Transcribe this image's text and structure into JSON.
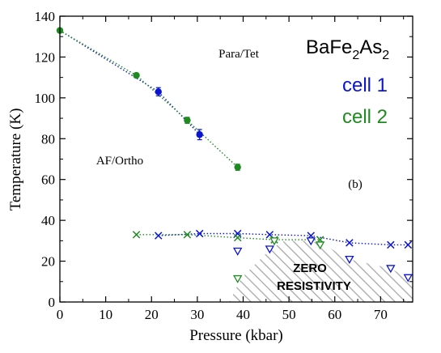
{
  "chart_data": {
    "type": "scatter",
    "title": "",
    "xlabel": "Pressure (kbar)",
    "ylabel": "Temperature (K)",
    "xlim": [
      0,
      77
    ],
    "ylim": [
      0,
      140
    ],
    "xticks": [
      0,
      10,
      20,
      30,
      40,
      50,
      60,
      70
    ],
    "yticks": [
      0,
      20,
      40,
      60,
      80,
      100,
      120,
      140
    ],
    "grid": false,
    "legend_position": "top-right",
    "compound": {
      "base": "BaFe",
      "sub1": "2",
      "mid": "As",
      "sub2": "2"
    },
    "panel_label": "(b)",
    "annotations": [
      {
        "text": "Para/Tet",
        "x": 35,
        "y": 122
      },
      {
        "text": "AF/Ortho",
        "x": 13,
        "y": 68
      }
    ],
    "zero_resistivity": {
      "label_line1": "ZERO",
      "label_line2": "RESISTIVITY",
      "boundary": [
        [
          37,
          0
        ],
        [
          39.5,
          11.5
        ],
        [
          46,
          26
        ],
        [
          49,
          30
        ],
        [
          54,
          30
        ],
        [
          57,
          29
        ],
        [
          63,
          21
        ],
        [
          72,
          16.5
        ],
        [
          76,
          12
        ],
        [
          77,
          11.5
        ],
        [
          77,
          0
        ]
      ]
    },
    "series": [
      {
        "name": "cell 1",
        "color": "#0a14d2",
        "marker": "circle",
        "points": [
          [
            21.5,
            103,
            2
          ],
          [
            30.5,
            82,
            2.5
          ]
        ]
      },
      {
        "name": "cell 2",
        "color": "#1f8a1f",
        "marker": "circle",
        "points": [
          [
            0,
            133,
            0
          ],
          [
            16.7,
            111,
            0
          ],
          [
            27.8,
            89,
            1.5
          ],
          [
            38.8,
            66,
            1.5
          ]
        ]
      },
      {
        "name": "cell 1",
        "color": "#0a14d2",
        "marker": "x",
        "points": [
          [
            21.5,
            32.5
          ],
          [
            30.5,
            33.5
          ],
          [
            38.8,
            33.5
          ],
          [
            45.8,
            33
          ],
          [
            54.8,
            32.5
          ],
          [
            63.2,
            29
          ],
          [
            72.2,
            28
          ],
          [
            76,
            28
          ]
        ]
      },
      {
        "name": "cell 2",
        "color": "#1f8a1f",
        "marker": "x",
        "points": [
          [
            16.7,
            33
          ],
          [
            27.8,
            33
          ],
          [
            38.8,
            31.5
          ],
          [
            46.8,
            30.5
          ],
          [
            56.8,
            30.5
          ]
        ]
      },
      {
        "name": "cell 1",
        "color": "#0a14d2",
        "marker": "triangle-down",
        "points": [
          [
            38.8,
            25
          ],
          [
            45.8,
            26
          ],
          [
            54.8,
            30
          ],
          [
            63.2,
            21
          ],
          [
            72.2,
            16.5
          ],
          [
            76,
            12
          ]
        ]
      },
      {
        "name": "cell 2",
        "color": "#1f8a1f",
        "marker": "triangle-down",
        "points": [
          [
            38.8,
            11.5
          ],
          [
            46.8,
            30
          ],
          [
            56.8,
            28
          ]
        ]
      }
    ],
    "dotted_lines": [
      {
        "color": "#0a14d2",
        "points": [
          [
            0,
            133
          ],
          [
            21.5,
            103
          ],
          [
            30.5,
            82
          ]
        ]
      },
      {
        "color": "#1f8a1f",
        "points": [
          [
            0,
            133
          ],
          [
            16.7,
            111
          ],
          [
            27.8,
            89
          ],
          [
            38.8,
            66
          ]
        ]
      },
      {
        "color": "#0a14d2",
        "points": [
          [
            21.5,
            32.5
          ],
          [
            30.5,
            33.5
          ],
          [
            38.8,
            33.5
          ],
          [
            45.8,
            33
          ],
          [
            54.8,
            32.5
          ],
          [
            63.2,
            29
          ],
          [
            72.2,
            28
          ],
          [
            76,
            28
          ]
        ]
      },
      {
        "color": "#1f8a1f",
        "points": [
          [
            16.7,
            33
          ],
          [
            27.8,
            33
          ],
          [
            38.8,
            31.5
          ],
          [
            46.8,
            30.5
          ],
          [
            56.8,
            30.5
          ]
        ]
      }
    ],
    "legend": [
      {
        "label": "cell 1",
        "color": "#0a14d2"
      },
      {
        "label": "cell 2",
        "color": "#1f8a1f"
      }
    ]
  }
}
